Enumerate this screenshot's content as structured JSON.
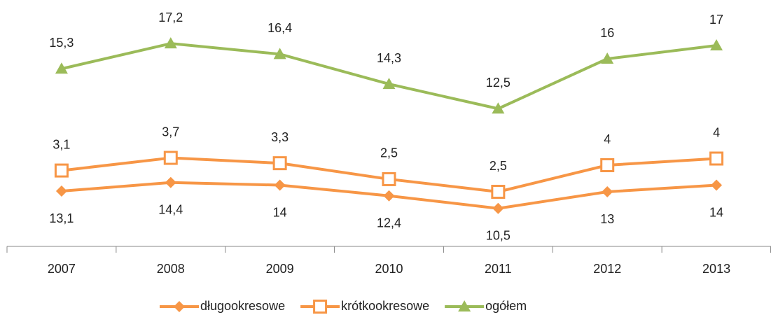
{
  "chart_data": {
    "type": "line",
    "stacked": true,
    "categories": [
      "2007",
      "2008",
      "2009",
      "2010",
      "2011",
      "2012",
      "2013"
    ],
    "series": [
      {
        "name": "długookresowe",
        "color": "#f79646",
        "marker": "diamond",
        "label_position": "below",
        "values": [
          13.1,
          14.4,
          14,
          12.4,
          10.5,
          13,
          14
        ],
        "value_labels": [
          "13,1",
          "14,4",
          "14",
          "12,4",
          "10,5",
          "13",
          "14"
        ]
      },
      {
        "name": "krótkookresowe",
        "color": "#f79646",
        "marker": "square",
        "label_position": "above",
        "values": [
          3.1,
          3.7,
          3.3,
          2.5,
          2.5,
          4,
          4
        ],
        "value_labels": [
          "3,1",
          "3,7",
          "3,3",
          "2,5",
          "2,5",
          "4",
          "4"
        ]
      },
      {
        "name": "ogółem",
        "color": "#9bbb59",
        "marker": "triangle",
        "label_position": "above",
        "values": [
          15.3,
          17.2,
          16.4,
          14.3,
          12.5,
          16,
          17
        ],
        "value_labels": [
          "15,3",
          "17,2",
          "16,4",
          "14,3",
          "12,5",
          "16",
          "17"
        ]
      }
    ],
    "legend": "bottom"
  }
}
